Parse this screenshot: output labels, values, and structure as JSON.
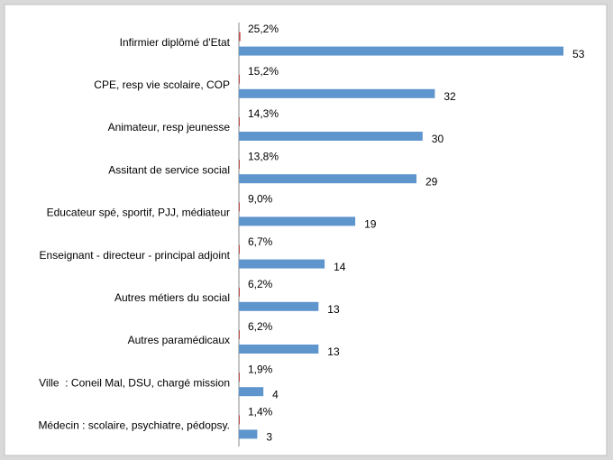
{
  "chart_data": {
    "type": "bar",
    "orientation": "horizontal",
    "categories": [
      "Infirmier diplômé d'Etat",
      "CPE, resp vie scolaire, COP",
      "Animateur, resp jeunesse",
      "Assitant de service social",
      "Educateur spé, sportif, PJJ, médiateur",
      "Enseignant - directeur - principal adjoint",
      "Autres métiers du social",
      "Autres paramédicaux",
      "Ville  : Coneil Mal, DSU, chargé mission",
      "Médecin : scolaire, psychiatre, pédopsy."
    ],
    "series": [
      {
        "color": "#c0504d",
        "values": [
          0.252,
          0.152,
          0.143,
          0.138,
          0.09,
          0.067,
          0.062,
          0.062,
          0.019,
          0.014
        ],
        "value_labels": [
          "25,2%",
          "15,2%",
          "14,3%",
          "13,8%",
          "9,0%",
          "6,7%",
          "6,2%",
          "6,2%",
          "1,9%",
          "1,4%"
        ]
      },
      {
        "color": "#5f95cd",
        "values": [
          53,
          32,
          30,
          29,
          19,
          14,
          13,
          13,
          4,
          3
        ]
      }
    ],
    "xlim": [
      0,
      58
    ]
  }
}
